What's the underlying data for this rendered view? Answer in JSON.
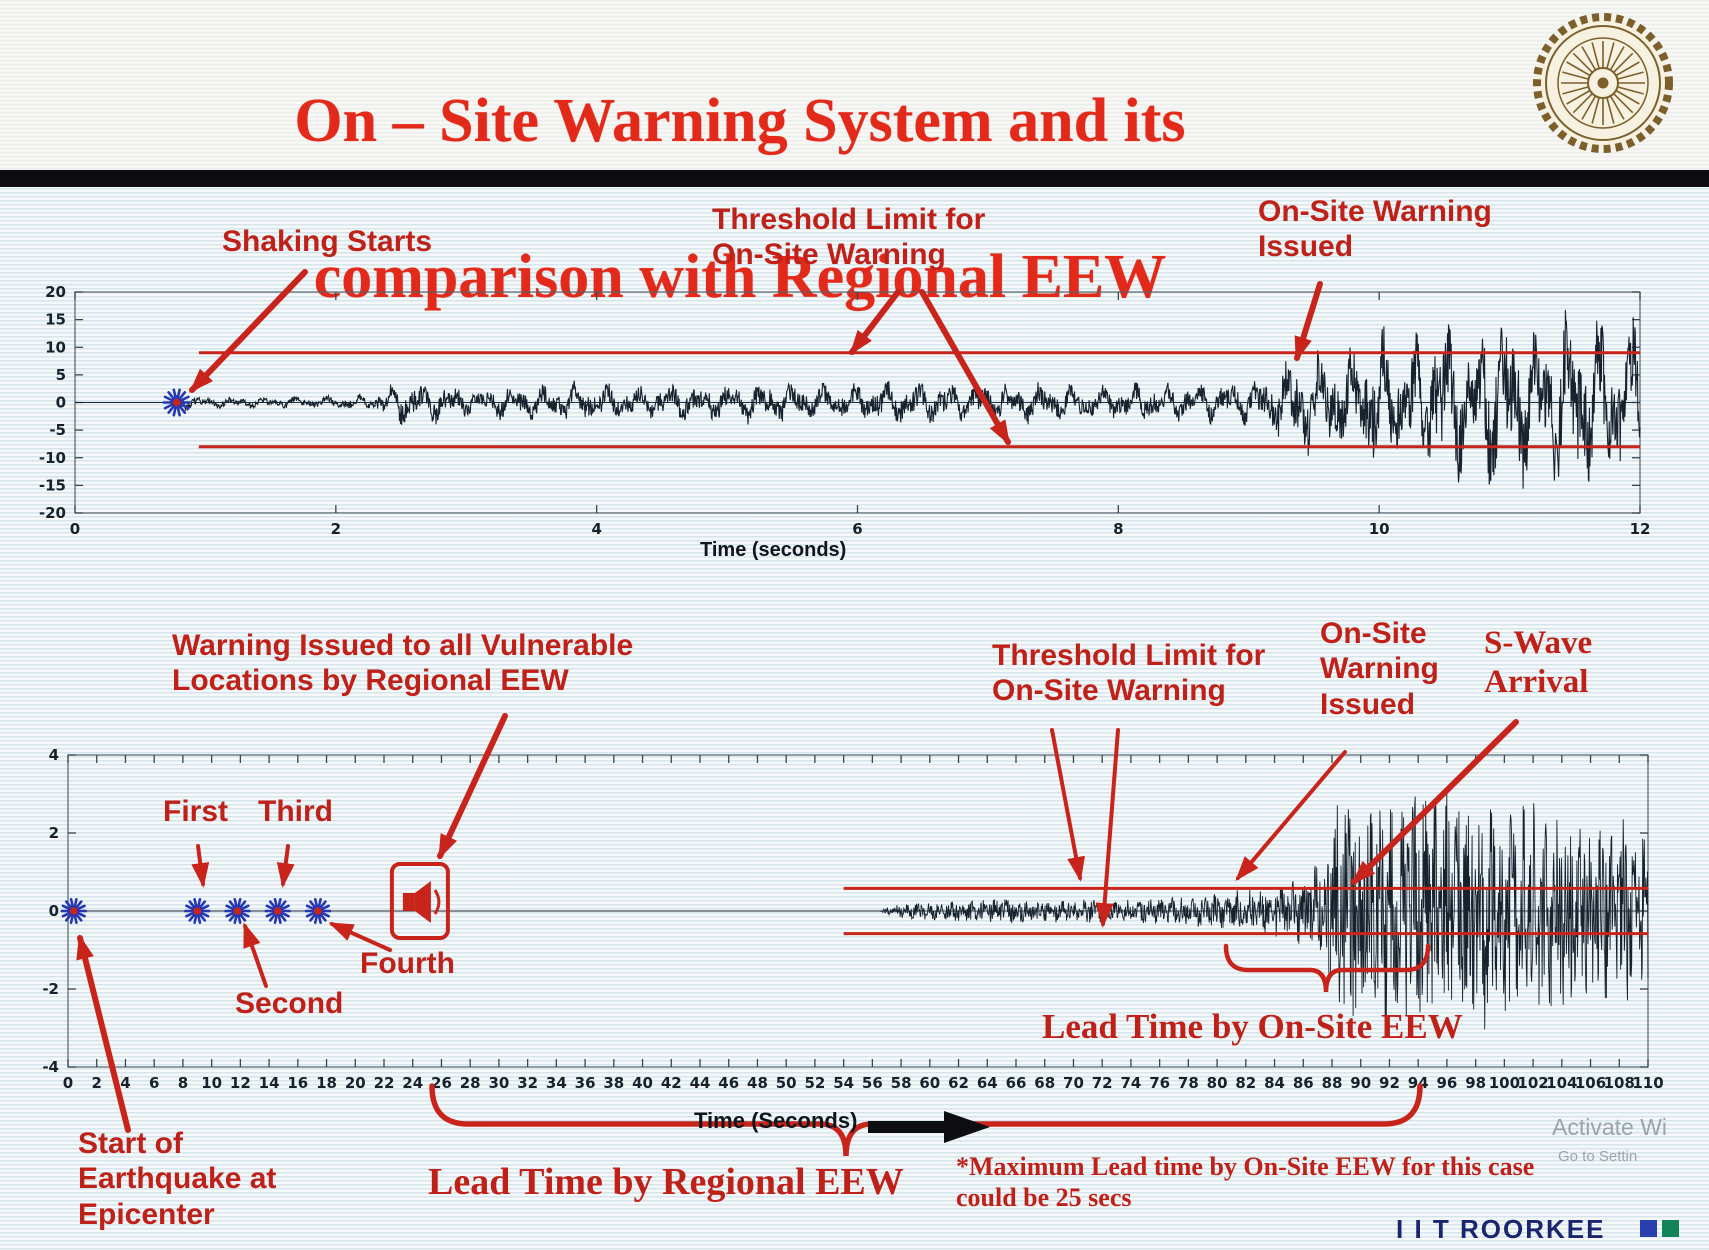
{
  "slide": {
    "title_line1": "On – Site Warning System and its",
    "title_line2": "comparison with Regional EEW",
    "footer_brand": "I I T ROORKEE",
    "watermark_line1": "Activate Wi",
    "watermark_line2": "Go to Settin"
  },
  "annotations": {
    "shaking_starts": "Shaking Starts",
    "threshold_limit_top": "Threshold Limit for\nOn-Site Warning",
    "onsite_warning_issued_top": "On-Site Warning\nIssued",
    "regional_warning_issued": "Warning Issued to all Vulnerable\nLocations by Regional EEW",
    "first": "First",
    "second": "Second",
    "third": "Third",
    "fourth": "Fourth",
    "epicenter": "Start of\nEarthquake at\nEpicenter",
    "threshold_limit_bottom": "Threshold Limit for\nOn-Site Warning",
    "onsite_warning_issued_bottom": "On-Site\nWarning\nIssued",
    "s_wave_arrival": "S-Wave\nArrival",
    "lead_time_onsite": "Lead Time by On-Site EEW",
    "lead_time_regional": "Lead Time by Regional EEW",
    "max_lead_note": "*Maximum Lead time by On-Site EEW for this case\ncould be 25 secs"
  },
  "chart_data": [
    {
      "type": "line",
      "name": "onsite-warning-seismogram",
      "title": "",
      "xlabel": "Time (seconds)",
      "ylabel": "",
      "xlim": [
        0,
        12
      ],
      "ylim": [
        -20,
        20
      ],
      "xticks": [
        0,
        2,
        4,
        6,
        8,
        10,
        12
      ],
      "yticks": [
        20,
        15,
        10,
        5,
        0,
        -5,
        -10,
        -15,
        -20
      ],
      "grid": false,
      "threshold_upper": 9,
      "threshold_lower": -8,
      "threshold_x_range": [
        0.95,
        12
      ],
      "events": {
        "shaking_starts_t": 0.78,
        "onsite_warning_issued_t": 9.4
      },
      "envelope": [
        [
          0,
          0
        ],
        [
          0.72,
          0
        ],
        [
          0.8,
          1.6
        ],
        [
          1.0,
          0.9
        ],
        [
          1.4,
          0.8
        ],
        [
          1.9,
          1.0
        ],
        [
          2.25,
          1.2
        ],
        [
          2.5,
          3.6
        ],
        [
          2.8,
          3.0
        ],
        [
          3.1,
          2.3
        ],
        [
          3.5,
          2.7
        ],
        [
          3.9,
          3.1
        ],
        [
          4.3,
          2.5
        ],
        [
          4.8,
          2.9
        ],
        [
          5.3,
          3.3
        ],
        [
          5.8,
          2.7
        ],
        [
          6.3,
          3.5
        ],
        [
          6.8,
          2.9
        ],
        [
          7.3,
          3.2
        ],
        [
          7.8,
          2.6
        ],
        [
          8.2,
          3.0
        ],
        [
          8.6,
          2.8
        ],
        [
          9.0,
          3.4
        ],
        [
          9.2,
          5.0
        ],
        [
          9.45,
          9.0
        ],
        [
          9.7,
          7.5
        ],
        [
          9.95,
          11.5
        ],
        [
          10.2,
          8.5
        ],
        [
          10.45,
          13.5
        ],
        [
          10.7,
          10.5
        ],
        [
          10.95,
          15.0
        ],
        [
          11.2,
          11.5
        ],
        [
          11.5,
          14.5
        ],
        [
          11.75,
          12.5
        ],
        [
          12,
          13.5
        ]
      ],
      "noise_seed": 20,
      "stroke_width": 1.1,
      "line_color": "#18222e",
      "threshold_color": "#c9241b"
    },
    {
      "type": "line",
      "name": "regional-comparison-seismogram",
      "title": "",
      "xlabel": "Time (Seconds)",
      "ylabel": "",
      "xlim": [
        0,
        110
      ],
      "ylim": [
        -4,
        4
      ],
      "xticks": [
        0,
        2,
        4,
        6,
        8,
        10,
        12,
        14,
        16,
        18,
        20,
        22,
        24,
        26,
        28,
        30,
        32,
        34,
        36,
        38,
        40,
        42,
        44,
        46,
        48,
        50,
        52,
        54,
        56,
        58,
        60,
        62,
        64,
        66,
        68,
        70,
        72,
        74,
        76,
        78,
        80,
        82,
        84,
        86,
        88,
        90,
        92,
        94,
        96,
        98,
        100,
        102,
        104,
        106,
        108,
        110
      ],
      "yticks": [
        4,
        2,
        0,
        -2,
        -4
      ],
      "grid": false,
      "threshold_upper": 0.58,
      "threshold_lower": -0.58,
      "threshold_x_range": [
        54,
        110
      ],
      "p_wave_detections": [
        {
          "label": "Epicenter",
          "t": 0.4
        },
        {
          "label": "First",
          "t": 9
        },
        {
          "label": "Second",
          "t": 11.8
        },
        {
          "label": "Third",
          "t": 14.6
        },
        {
          "label": "Fourth",
          "t": 17.4
        }
      ],
      "regional_warning_t": 24.5,
      "onsite_warning_issued_t": 81,
      "s_wave_arrival_t": 88,
      "lead_time_onsite_range": [
        80.8,
        94.7
      ],
      "lead_time_regional_range": [
        25.3,
        94.2
      ],
      "max_lead_time_onsite_secs": 25,
      "envelope": [
        [
          0,
          0
        ],
        [
          56.5,
          0
        ],
        [
          57,
          0.12
        ],
        [
          59,
          0.2
        ],
        [
          62,
          0.26
        ],
        [
          65,
          0.3
        ],
        [
          68,
          0.26
        ],
        [
          71,
          0.3
        ],
        [
          74,
          0.27
        ],
        [
          77,
          0.33
        ],
        [
          79,
          0.4
        ],
        [
          81,
          0.5
        ],
        [
          83,
          0.55
        ],
        [
          85,
          0.65
        ],
        [
          86.5,
          0.95
        ],
        [
          87.5,
          1.7
        ],
        [
          88.5,
          2.7
        ],
        [
          89.5,
          3.2
        ],
        [
          90.5,
          2.4
        ],
        [
          91.5,
          3.0
        ],
        [
          92.5,
          2.3
        ],
        [
          93.5,
          3.1
        ],
        [
          95,
          2.6
        ],
        [
          96.5,
          3.2
        ],
        [
          98,
          2.7
        ],
        [
          99.5,
          3.0
        ],
        [
          101,
          2.5
        ],
        [
          102.5,
          2.8
        ],
        [
          104,
          2.3
        ],
        [
          105.5,
          2.5
        ],
        [
          107,
          2.1
        ],
        [
          108.5,
          2.3
        ],
        [
          110,
          1.9
        ]
      ],
      "noise_seed": 99,
      "stroke_width": 0.9,
      "line_color": "#18222e",
      "threshold_color": "#c9241b"
    }
  ]
}
